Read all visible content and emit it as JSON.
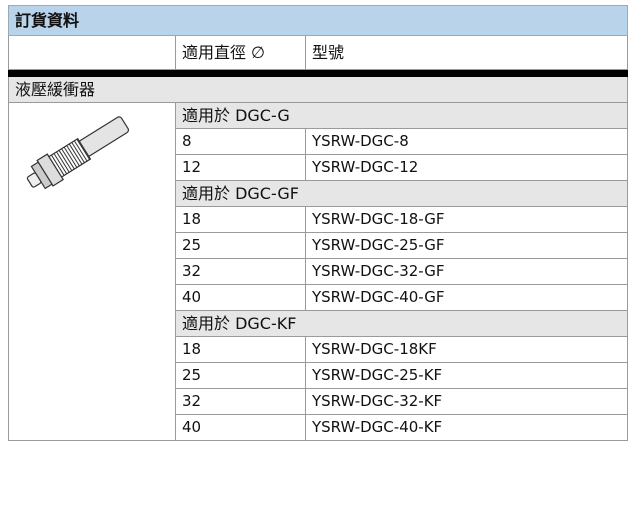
{
  "title": "訂貨資料",
  "header": [
    "適用直徑 ∅",
    "型號"
  ],
  "section": "液壓緩衝器",
  "groups": [
    {
      "label": "適用於 DGC-G",
      "rows": [
        [
          "8",
          "YSRW-DGC-8"
        ],
        [
          "12",
          "YSRW-DGC-12"
        ]
      ]
    },
    {
      "label": "適用於 DGC-GF",
      "rows": [
        [
          "18",
          "YSRW-DGC-18-GF"
        ],
        [
          "25",
          "YSRW-DGC-25-GF"
        ],
        [
          "32",
          "YSRW-DGC-32-GF"
        ],
        [
          "40",
          "YSRW-DGC-40-GF"
        ]
      ]
    },
    {
      "label": "適用於 DGC-KF",
      "rows": [
        [
          "18",
          "YSRW-DGC-18KF"
        ],
        [
          "25",
          "YSRW-DGC-25-KF"
        ],
        [
          "32",
          "YSRW-DGC-32-KF"
        ],
        [
          "40",
          "YSRW-DGC-40-KF"
        ]
      ]
    }
  ]
}
